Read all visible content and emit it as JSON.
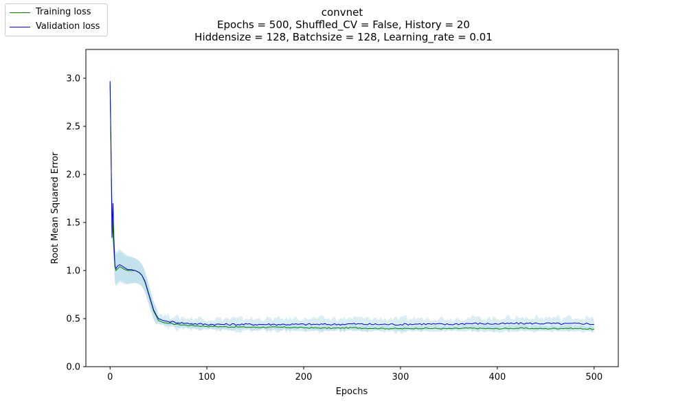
{
  "chart_data": {
    "type": "line",
    "title": "convnet",
    "subtitle_lines": [
      "Epochs = 500, Shuffled_CV = False, History = 20",
      "Hiddensize = 128, Batchsize = 128, Learning_rate = 0.01"
    ],
    "xlabel": "Epochs",
    "ylabel": "Root Mean Squared Error",
    "xlim": [
      -25,
      525
    ],
    "ylim": [
      0.0,
      3.3
    ],
    "xticks": [
      0,
      100,
      200,
      300,
      400,
      500
    ],
    "yticks": [
      0.0,
      0.5,
      1.0,
      1.5,
      2.0,
      2.5,
      3.0
    ],
    "xtick_labels": [
      "0",
      "100",
      "200",
      "300",
      "400",
      "500"
    ],
    "ytick_labels": [
      "0.0",
      "0.5",
      "1.0",
      "1.5",
      "2.0",
      "2.5",
      "3.0"
    ],
    "grid": false,
    "legend_position": "top-left",
    "band_color": "#add8e6",
    "series": [
      {
        "name": "Training loss",
        "color": "#008000",
        "points": [
          [
            0,
            2.95
          ],
          [
            1,
            2.2
          ],
          [
            2,
            1.6
          ],
          [
            3,
            1.4
          ],
          [
            4,
            1.2
          ],
          [
            5,
            1.05
          ],
          [
            6,
            1.0
          ],
          [
            8,
            1.02
          ],
          [
            10,
            1.04
          ],
          [
            12,
            1.03
          ],
          [
            15,
            1.01
          ],
          [
            18,
            1.0
          ],
          [
            22,
            1.0
          ],
          [
            26,
            1.0
          ],
          [
            30,
            0.98
          ],
          [
            33,
            0.95
          ],
          [
            36,
            0.88
          ],
          [
            39,
            0.78
          ],
          [
            42,
            0.68
          ],
          [
            45,
            0.58
          ],
          [
            48,
            0.52
          ],
          [
            50,
            0.48
          ],
          [
            55,
            0.46
          ],
          [
            60,
            0.45
          ],
          [
            70,
            0.44
          ],
          [
            80,
            0.43
          ],
          [
            90,
            0.425
          ],
          [
            100,
            0.42
          ],
          [
            120,
            0.415
          ],
          [
            150,
            0.41
          ],
          [
            180,
            0.41
          ],
          [
            200,
            0.405
          ],
          [
            230,
            0.4
          ],
          [
            250,
            0.405
          ],
          [
            270,
            0.4
          ],
          [
            300,
            0.395
          ],
          [
            320,
            0.4
          ],
          [
            350,
            0.395
          ],
          [
            370,
            0.4
          ],
          [
            400,
            0.395
          ],
          [
            420,
            0.4
          ],
          [
            450,
            0.395
          ],
          [
            470,
            0.4
          ],
          [
            490,
            0.395
          ],
          [
            500,
            0.39
          ]
        ]
      },
      {
        "name": "Validation loss",
        "color": "#0000cc",
        "points": [
          [
            0,
            2.97
          ],
          [
            1,
            2.3
          ],
          [
            2,
            1.34
          ],
          [
            3,
            1.7
          ],
          [
            4,
            1.3
          ],
          [
            5,
            1.05
          ],
          [
            6,
            1.02
          ],
          [
            8,
            1.05
          ],
          [
            10,
            1.06
          ],
          [
            12,
            1.05
          ],
          [
            15,
            1.03
          ],
          [
            18,
            1.01
          ],
          [
            22,
            1.01
          ],
          [
            26,
            1.0
          ],
          [
            30,
            0.98
          ],
          [
            33,
            0.95
          ],
          [
            36,
            0.89
          ],
          [
            39,
            0.79
          ],
          [
            42,
            0.69
          ],
          [
            45,
            0.59
          ],
          [
            48,
            0.53
          ],
          [
            50,
            0.5
          ],
          [
            55,
            0.48
          ],
          [
            60,
            0.47
          ],
          [
            70,
            0.46
          ],
          [
            80,
            0.45
          ],
          [
            90,
            0.445
          ],
          [
            100,
            0.44
          ],
          [
            120,
            0.44
          ],
          [
            150,
            0.44
          ],
          [
            180,
            0.44
          ],
          [
            200,
            0.44
          ],
          [
            230,
            0.44
          ],
          [
            250,
            0.445
          ],
          [
            270,
            0.44
          ],
          [
            300,
            0.44
          ],
          [
            320,
            0.445
          ],
          [
            350,
            0.44
          ],
          [
            370,
            0.45
          ],
          [
            400,
            0.445
          ],
          [
            420,
            0.45
          ],
          [
            450,
            0.45
          ],
          [
            470,
            0.445
          ],
          [
            490,
            0.45
          ],
          [
            500,
            0.44
          ]
        ]
      }
    ]
  }
}
